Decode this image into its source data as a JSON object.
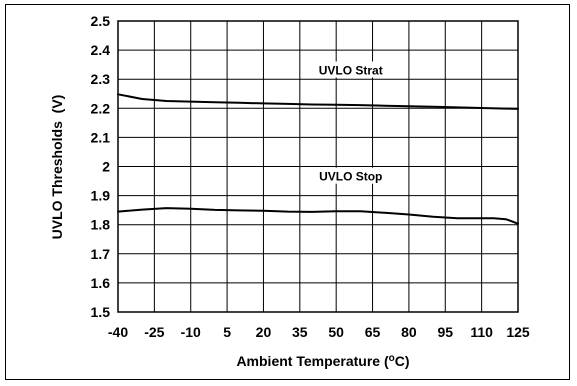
{
  "chart_data": {
    "type": "line",
    "title": "",
    "xlabel": "Ambient Temperature (°C)",
    "xlabel_parts": [
      "Ambient Temperature (",
      "o",
      "C)"
    ],
    "ylabel": "UVLO Thresholds  (V)",
    "xlim": [
      -40,
      125
    ],
    "ylim": [
      1.5,
      2.5
    ],
    "x_ticks": [
      "-40",
      "-25",
      "-10",
      "5",
      "20",
      "35",
      "50",
      "65",
      "80",
      "95",
      "110",
      "125"
    ],
    "y_ticks": [
      "2.5",
      "2.4",
      "2.3",
      "2.2",
      "2.1",
      "2",
      "1.9",
      "1.8",
      "1.7",
      "1.6",
      "1.5"
    ],
    "grid": true,
    "series": [
      {
        "name": "UVLO Strat",
        "color": "#000000",
        "x": [
          -40,
          -30,
          -20,
          -10,
          0,
          10,
          20,
          30,
          40,
          50,
          60,
          70,
          80,
          90,
          100,
          110,
          120,
          125
        ],
        "y": [
          2.248,
          2.232,
          2.225,
          2.223,
          2.221,
          2.219,
          2.217,
          2.215,
          2.213,
          2.212,
          2.211,
          2.209,
          2.207,
          2.205,
          2.203,
          2.201,
          2.199,
          2.198
        ]
      },
      {
        "name": "UVLO Stop",
        "color": "#000000",
        "x": [
          -40,
          -30,
          -20,
          -10,
          0,
          10,
          20,
          30,
          40,
          50,
          60,
          70,
          80,
          90,
          100,
          110,
          115,
          120,
          123,
          125
        ],
        "y": [
          1.845,
          1.852,
          1.857,
          1.855,
          1.851,
          1.849,
          1.848,
          1.845,
          1.844,
          1.846,
          1.846,
          1.841,
          1.835,
          1.827,
          1.822,
          1.822,
          1.822,
          1.819,
          1.81,
          1.803
        ]
      }
    ]
  }
}
